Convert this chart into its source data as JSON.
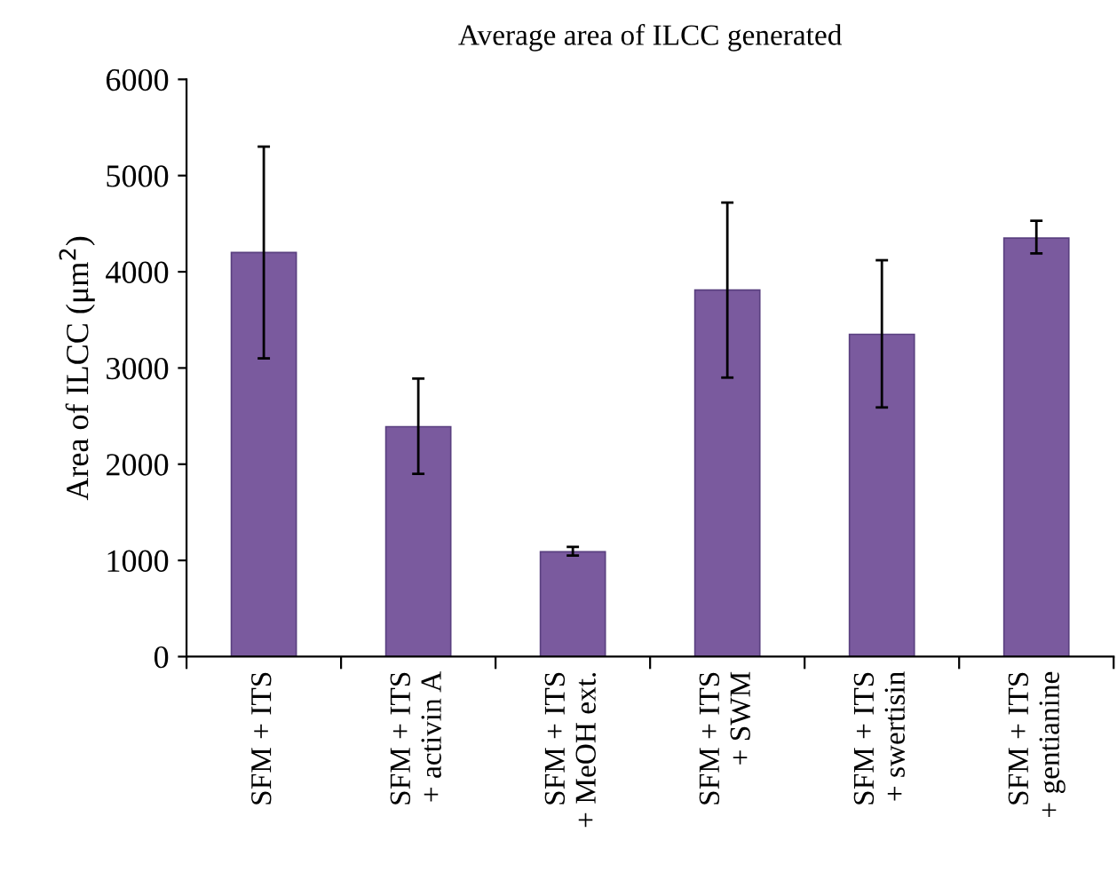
{
  "chart_data": {
    "type": "bar",
    "title": "Average area of ILCC generated",
    "ylabel": "Area of ILCC (μm$^{2}$)",
    "categories": [
      "SFM + ITS",
      "SFM + ITS\n+ activin A",
      "SFM + ITS\n+ MeOH ext.",
      "SFM + ITS\n+ SWM",
      "SFM + ITS\n+ swertisin",
      "SFM + ITS\n+ gentianine"
    ],
    "values": [
      4200,
      2390,
      1090,
      3810,
      3350,
      4350
    ],
    "errors": [
      [
        3100,
        5300
      ],
      [
        1900,
        2890
      ],
      [
        1050,
        1140
      ],
      [
        2900,
        4720
      ],
      [
        2590,
        4120
      ],
      [
        4190,
        4530
      ]
    ],
    "color": "#7a5a9e",
    "ylim": [
      0,
      6000
    ],
    "yticks": [
      0,
      1000,
      2000,
      3000,
      4000,
      5000,
      6000
    ],
    "grid": false,
    "legend": false
  }
}
